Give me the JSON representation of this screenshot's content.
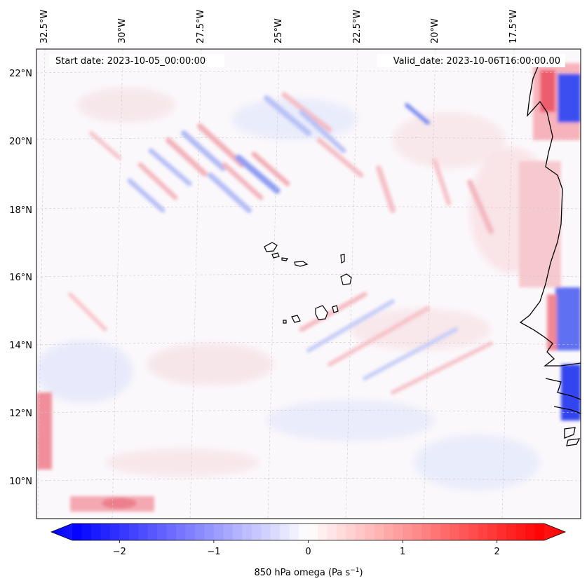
{
  "map": {
    "lon_labels": [
      "32.5°W",
      "30°W",
      "27.5°W",
      "25°W",
      "22.5°W",
      "20°W",
      "17.5°W"
    ],
    "lat_labels": [
      "22°N",
      "20°N",
      "18°N",
      "16°N",
      "14°N",
      "12°N",
      "10°N"
    ],
    "start_date": "Start date: 2023-10-05_00:00:00",
    "valid_date": "Valid_date: 2023-10-06T16:00:00.00",
    "field": "850 hPa omega",
    "gridlines": true,
    "colors": {
      "negative": "#0000ff",
      "zero": "#ffffff",
      "positive": "#ff0000",
      "coast": "#000000"
    }
  },
  "colorbar": {
    "label": "850 hPa omega (Pa s",
    "label_sup": "−1",
    "label_close": ")",
    "range": [
      -2.7,
      2.7
    ],
    "ticks": [
      {
        "value": -2,
        "label": "−2"
      },
      {
        "value": -1,
        "label": "−1"
      },
      {
        "value": 0,
        "label": "0"
      },
      {
        "value": 1,
        "label": "1"
      },
      {
        "value": 2,
        "label": "2"
      }
    ],
    "extend": "both",
    "cmap": "bwr"
  }
}
